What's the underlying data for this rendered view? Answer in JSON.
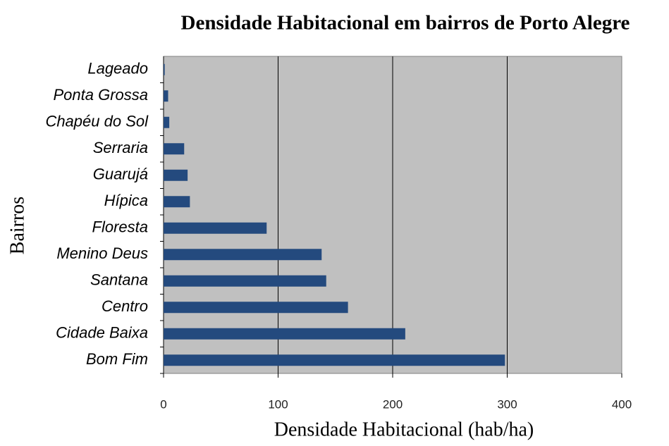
{
  "chart_data": {
    "type": "hbar",
    "title": "Densidade Habitacional em bairros de Porto Alegre",
    "x_label": "Densidade Habitacional (hab/ha)",
    "y_label": "Bairros",
    "categories": [
      "Bom Fim",
      "Cidade Baixa",
      "Centro",
      "Santana",
      "Menino Deus",
      "Floresta",
      "Hípica",
      "Guarujá",
      "Serraria",
      "Chapéu do Sol",
      "Ponta Grossa",
      "Lageado"
    ],
    "values": [
      298,
      211,
      161,
      142,
      138,
      90,
      23,
      21,
      18,
      5,
      4,
      1
    ],
    "color": "#244a7e",
    "xlim": [
      0,
      400
    ],
    "xticks": [
      0,
      100,
      200,
      300,
      400
    ],
    "grid": true
  }
}
